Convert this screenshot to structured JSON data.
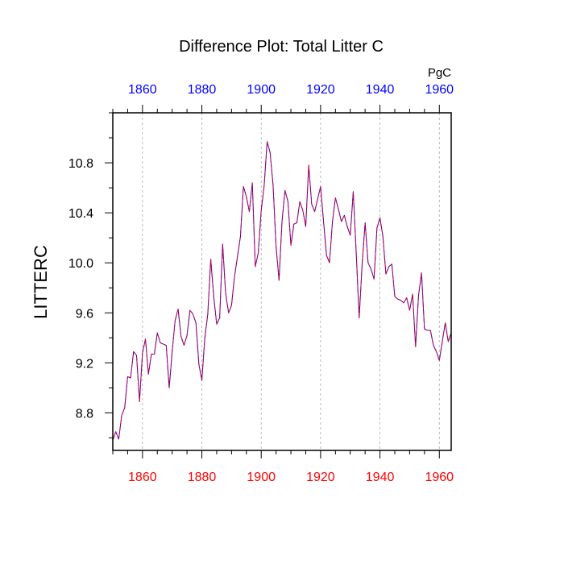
{
  "chart_data": {
    "type": "line",
    "title": "Difference Plot: Total Litter C",
    "ylabel": "LITTERC",
    "units_label": "PgC",
    "xlim": [
      1850,
      1964
    ],
    "ylim": [
      8.5,
      11.2
    ],
    "x_ticks": [
      1860,
      1880,
      1900,
      1920,
      1940,
      1960
    ],
    "y_ticks": [
      8.8,
      9.2,
      9.6,
      10.0,
      10.4,
      10.8
    ],
    "y_tick_labels": [
      "8.8",
      "9.2",
      "9.6",
      "10.0",
      "10.4",
      "10.8"
    ],
    "bottom_tick_color": "#ff0000",
    "top_tick_color": "#0000ff",
    "grid": "vertical dashed at major x ticks",
    "series": [
      {
        "color": "#0000ff",
        "style": "solid",
        "x": [
          1850,
          1851,
          1852,
          1853,
          1854,
          1855,
          1856,
          1857,
          1858,
          1859,
          1860,
          1861,
          1862,
          1863,
          1864,
          1865,
          1866,
          1867,
          1868,
          1869,
          1870,
          1871,
          1872,
          1873,
          1874,
          1875,
          1876,
          1877,
          1878,
          1879,
          1880,
          1881,
          1882,
          1883,
          1884,
          1885,
          1886,
          1887,
          1888,
          1889,
          1890,
          1891,
          1892,
          1893,
          1894,
          1895,
          1896,
          1897,
          1898,
          1899,
          1900,
          1901,
          1902,
          1903,
          1904,
          1905,
          1906,
          1907,
          1908,
          1909,
          1910,
          1911,
          1912,
          1913,
          1914,
          1915,
          1916,
          1917,
          1918,
          1919,
          1920,
          1921,
          1922,
          1923,
          1924,
          1925,
          1926,
          1927,
          1928,
          1929,
          1930,
          1931,
          1932,
          1933,
          1934,
          1935,
          1936,
          1937,
          1938,
          1939,
          1940,
          1941,
          1942,
          1943,
          1944,
          1945,
          1946,
          1947,
          1948,
          1949,
          1950,
          1951,
          1952,
          1953,
          1954,
          1955,
          1956,
          1957,
          1958,
          1959,
          1960,
          1961,
          1962,
          1963,
          1964
        ],
        "values": [
          8.58,
          8.65,
          8.59,
          8.78,
          8.84,
          9.09,
          9.08,
          9.29,
          9.26,
          8.89,
          9.28,
          9.39,
          9.11,
          9.27,
          9.27,
          9.44,
          9.36,
          9.35,
          9.34,
          9.0,
          9.29,
          9.54,
          9.63,
          9.41,
          9.34,
          9.42,
          9.62,
          9.59,
          9.52,
          9.19,
          9.06,
          9.4,
          9.59,
          10.03,
          9.73,
          9.51,
          9.56,
          10.15,
          9.76,
          9.6,
          9.66,
          9.89,
          10.05,
          10.21,
          10.61,
          10.53,
          10.41,
          10.64,
          9.97,
          10.08,
          10.42,
          10.62,
          10.97,
          10.88,
          10.62,
          10.13,
          9.86,
          10.33,
          10.58,
          10.49,
          10.14,
          10.31,
          10.32,
          10.49,
          10.42,
          10.29,
          10.78,
          10.47,
          10.41,
          10.51,
          10.61,
          10.33,
          10.06,
          10.0,
          10.33,
          10.52,
          10.43,
          10.33,
          10.38,
          10.29,
          10.22,
          10.57,
          10.08,
          9.56,
          9.99,
          10.32,
          10.0,
          9.95,
          9.87,
          10.28,
          10.36,
          10.21,
          9.91,
          9.97,
          9.99,
          9.73,
          9.71,
          9.7,
          9.68,
          9.72,
          9.62,
          9.75,
          9.33,
          9.74,
          9.92,
          9.47,
          9.46,
          9.46,
          9.34,
          9.29,
          9.22,
          9.37,
          9.52,
          9.37,
          9.44
        ]
      },
      {
        "color": "#ff0000",
        "style": "dashed",
        "x": [
          1850,
          1851,
          1852,
          1853,
          1854,
          1855,
          1856,
          1857,
          1858,
          1859,
          1860,
          1861,
          1862,
          1863,
          1864,
          1865,
          1866,
          1867,
          1868,
          1869,
          1870,
          1871,
          1872,
          1873,
          1874,
          1875,
          1876,
          1877,
          1878,
          1879,
          1880,
          1881,
          1882,
          1883,
          1884,
          1885,
          1886,
          1887,
          1888,
          1889,
          1890,
          1891,
          1892,
          1893,
          1894,
          1895,
          1896,
          1897,
          1898,
          1899,
          1900,
          1901,
          1902,
          1903,
          1904,
          1905,
          1906,
          1907,
          1908,
          1909,
          1910,
          1911,
          1912,
          1913,
          1914,
          1915,
          1916,
          1917,
          1918,
          1919,
          1920,
          1921,
          1922,
          1923,
          1924,
          1925,
          1926,
          1927,
          1928,
          1929,
          1930,
          1931,
          1932,
          1933,
          1934,
          1935,
          1936,
          1937,
          1938,
          1939,
          1940,
          1941,
          1942,
          1943,
          1944,
          1945,
          1946,
          1947,
          1948,
          1949,
          1950,
          1951,
          1952,
          1953,
          1954,
          1955,
          1956,
          1957,
          1958,
          1959,
          1960,
          1961,
          1962,
          1963,
          1964
        ],
        "values": [
          8.58,
          8.65,
          8.59,
          8.78,
          8.84,
          9.09,
          9.08,
          9.29,
          9.26,
          8.89,
          9.28,
          9.39,
          9.11,
          9.27,
          9.27,
          9.44,
          9.36,
          9.35,
          9.34,
          9.0,
          9.29,
          9.54,
          9.63,
          9.41,
          9.34,
          9.42,
          9.62,
          9.59,
          9.52,
          9.19,
          9.06,
          9.4,
          9.59,
          10.03,
          9.73,
          9.51,
          9.56,
          10.15,
          9.76,
          9.6,
          9.66,
          9.89,
          10.05,
          10.21,
          10.61,
          10.53,
          10.41,
          10.64,
          9.97,
          10.08,
          10.42,
          10.62,
          10.97,
          10.88,
          10.62,
          10.13,
          9.86,
          10.33,
          10.58,
          10.49,
          10.14,
          10.31,
          10.32,
          10.49,
          10.42,
          10.29,
          10.78,
          10.47,
          10.41,
          10.51,
          10.61,
          10.33,
          10.06,
          10.0,
          10.33,
          10.52,
          10.43,
          10.33,
          10.38,
          10.29,
          10.22,
          10.57,
          10.08,
          9.56,
          9.99,
          10.32,
          10.0,
          9.95,
          9.87,
          10.28,
          10.36,
          10.21,
          9.91,
          9.97,
          9.99,
          9.73,
          9.71,
          9.7,
          9.68,
          9.72,
          9.62,
          9.75,
          9.33,
          9.74,
          9.92,
          9.47,
          9.46,
          9.46,
          9.34,
          9.29,
          9.22,
          9.37,
          9.52,
          9.37,
          9.44
        ]
      }
    ]
  }
}
